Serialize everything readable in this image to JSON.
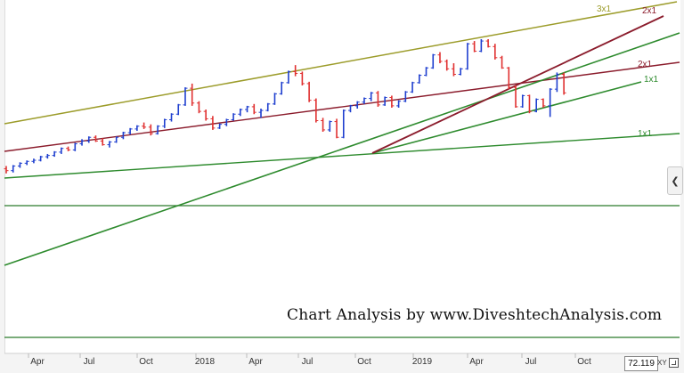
{
  "chart_data": {
    "type": "bar",
    "subtype": "ohlc-weekly",
    "watermark": "Chart Analysis by www.DiveshtechAnalysis.com",
    "x_ticks": [
      "Apr",
      "Jul",
      "Oct",
      "2018",
      "Apr",
      "Jul",
      "Oct",
      "2019",
      "Apr",
      "Jul",
      "Oct"
    ],
    "x_range": [
      "2017-02",
      "2019-12"
    ],
    "y_range": [
      0,
      100
    ],
    "price_readout": "72.119",
    "axis_mode": "XY",
    "grid": false,
    "colors": {
      "up": "#1f3fcf",
      "down": "#e03030",
      "line_green": "#2e8b2e",
      "line_maroon": "#8b1c2c",
      "line_olive": "#9c9c2a",
      "horizontal": "#2a7a2a"
    },
    "fan_labels": [
      {
        "text": "3x1",
        "color": "#9c9c2a"
      },
      {
        "text": "2x1",
        "color": "#8b1c2c"
      },
      {
        "text": "2x1",
        "color": "#8b1c2c"
      },
      {
        "text": "1x1",
        "color": "#2e8b2e"
      },
      {
        "text": "1x1",
        "color": "#2e8b2e"
      }
    ],
    "series": [
      {
        "values": [
          [
            30,
            31.5,
            27.5,
            29
          ],
          [
            29,
            32,
            28,
            31.5
          ],
          [
            31.5,
            33.5,
            30.5,
            33
          ],
          [
            33,
            34.5,
            32,
            34
          ],
          [
            34,
            35.5,
            33,
            34.6
          ],
          [
            34.6,
            37,
            34,
            36.5
          ],
          [
            36.5,
            38,
            35.5,
            37.2
          ],
          [
            37.2,
            39.5,
            36.5,
            39
          ],
          [
            39,
            41.5,
            38,
            41
          ],
          [
            41,
            42,
            39.5,
            40.2
          ],
          [
            40.2,
            44,
            39.5,
            43.5
          ],
          [
            43.5,
            46,
            42.5,
            45
          ],
          [
            45,
            47.5,
            44,
            47
          ],
          [
            47,
            48,
            44.5,
            45
          ],
          [
            45,
            46.5,
            42.5,
            43
          ],
          [
            43,
            45,
            41.5,
            44.5
          ],
          [
            44.5,
            47.5,
            44,
            47
          ],
          [
            47,
            50,
            46,
            49.5
          ],
          [
            49.5,
            52,
            48.5,
            51.5
          ],
          [
            51.5,
            53.5,
            50.5,
            53
          ],
          [
            53,
            55,
            51.5,
            52.5
          ],
          [
            52.5,
            54,
            48,
            49
          ],
          [
            49,
            53.5,
            48.5,
            53
          ],
          [
            53,
            57,
            52,
            56.5
          ],
          [
            56.5,
            60,
            55.5,
            59.5
          ],
          [
            59.5,
            65,
            59,
            64.5
          ],
          [
            64.5,
            74,
            64,
            73.5
          ],
          [
            73.5,
            76,
            64,
            65.5
          ],
          [
            65.5,
            66.5,
            60,
            61
          ],
          [
            61,
            62,
            56,
            57
          ],
          [
            57,
            58.5,
            51,
            52
          ],
          [
            52,
            54.5,
            51.5,
            54
          ],
          [
            54,
            57,
            53,
            56.5
          ],
          [
            56.5,
            60,
            56,
            59.5
          ],
          [
            59.5,
            62.5,
            58.5,
            62
          ],
          [
            62,
            64,
            60.5,
            63.5
          ],
          [
            63.5,
            65,
            59.5,
            60.5
          ],
          [
            60.5,
            62.5,
            57.5,
            61.5
          ],
          [
            61.5,
            65.5,
            61,
            65
          ],
          [
            65,
            71,
            64.5,
            70.5
          ],
          [
            70.5,
            77,
            70,
            76.5
          ],
          [
            76.5,
            83,
            76,
            82.5
          ],
          [
            82.5,
            86,
            80,
            81.5
          ],
          [
            81.5,
            82.5,
            75,
            76
          ],
          [
            76,
            77,
            66,
            67
          ],
          [
            67,
            68,
            55,
            56
          ],
          [
            56,
            57.5,
            50,
            51
          ],
          [
            51,
            56,
            50,
            55.5
          ],
          [
            55.5,
            57,
            46.5,
            47
          ],
          [
            47,
            62,
            46.5,
            61.5
          ],
          [
            61.5,
            64.5,
            60.5,
            64
          ],
          [
            64,
            66.5,
            62.5,
            66
          ],
          [
            66,
            68.5,
            65,
            68
          ],
          [
            68,
            71.5,
            66.5,
            71
          ],
          [
            71,
            72,
            63.5,
            64.5
          ],
          [
            64.5,
            69,
            64,
            68.5
          ],
          [
            68.5,
            69.5,
            63,
            64
          ],
          [
            64,
            67,
            63,
            66.5
          ],
          [
            66.5,
            72,
            66,
            71.5
          ],
          [
            71.5,
            77,
            71,
            76.5
          ],
          [
            76.5,
            81,
            76,
            80.5
          ],
          [
            80.5,
            85,
            80,
            84.5
          ],
          [
            84.5,
            92,
            84,
            91.5
          ],
          [
            91.5,
            93,
            87,
            88
          ],
          [
            88,
            89,
            83,
            84
          ],
          [
            84,
            87,
            80,
            81
          ],
          [
            81,
            84.5,
            80.5,
            84
          ],
          [
            84,
            98,
            83.5,
            97.5
          ],
          [
            97.5,
            99,
            93,
            93.5
          ],
          [
            93.5,
            100,
            93,
            99
          ],
          [
            99,
            100,
            95.5,
            96
          ],
          [
            96,
            97.5,
            89,
            90
          ],
          [
            90,
            91,
            84,
            84.5
          ],
          [
            84.5,
            85,
            73,
            74
          ],
          [
            74,
            75,
            63,
            63.5
          ],
          [
            63.5,
            70,
            63,
            69.5
          ],
          [
            69.5,
            70,
            60,
            61
          ],
          [
            61,
            68,
            60.5,
            67.5
          ],
          [
            67.5,
            68,
            63,
            64
          ],
          [
            64,
            73.5,
            58,
            73
          ],
          [
            73,
            82,
            71.5,
            81
          ],
          [
            81,
            82,
            70,
            71
          ]
        ]
      }
    ]
  }
}
